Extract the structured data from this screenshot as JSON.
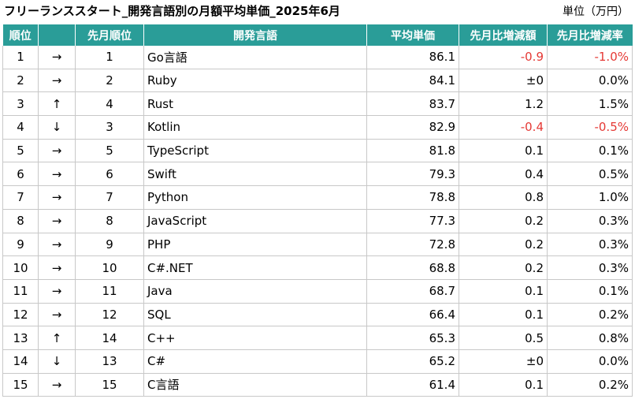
{
  "title": "フリーランススタート_開発言語別の月額平均単価_2025年6月",
  "unit": "単位（万円）",
  "colors": {
    "header_bg": "#2a9d98",
    "header_text": "#ffffff",
    "negative": "#e53935"
  },
  "table": {
    "headers": [
      "順位",
      "",
      "先月順位",
      "開発言語",
      "平均単価",
      "先月比増減額",
      "先月比増減率"
    ],
    "rows": [
      [
        "1",
        "→",
        "1",
        "Go言語",
        "86.1",
        "-0.9",
        "-1.0%"
      ],
      [
        "2",
        "→",
        "2",
        "Ruby",
        "84.1",
        "±0",
        "0.0%"
      ],
      [
        "3",
        "↑",
        "4",
        "Rust",
        "83.7",
        "1.2",
        "1.5%"
      ],
      [
        "4",
        "↓",
        "3",
        "Kotlin",
        "82.9",
        "-0.4",
        "-0.5%"
      ],
      [
        "5",
        "→",
        "5",
        "TypeScript",
        "81.8",
        "0.1",
        "0.1%"
      ],
      [
        "6",
        "→",
        "6",
        "Swift",
        "79.3",
        "0.4",
        "0.5%"
      ],
      [
        "7",
        "→",
        "7",
        "Python",
        "78.8",
        "0.8",
        "1.0%"
      ],
      [
        "8",
        "→",
        "8",
        "JavaScript",
        "77.3",
        "0.2",
        "0.3%"
      ],
      [
        "9",
        "→",
        "9",
        "PHP",
        "72.8",
        "0.2",
        "0.3%"
      ],
      [
        "10",
        "→",
        "10",
        "C#.NET",
        "68.8",
        "0.2",
        "0.3%"
      ],
      [
        "11",
        "→",
        "11",
        "Java",
        "68.7",
        "0.1",
        "0.1%"
      ],
      [
        "12",
        "→",
        "12",
        "SQL",
        "66.4",
        "0.1",
        "0.2%"
      ],
      [
        "13",
        "↑",
        "14",
        "C++",
        "65.3",
        "0.5",
        "0.8%"
      ],
      [
        "14",
        "↓",
        "13",
        "C#",
        "65.2",
        "±0",
        "0.0%"
      ],
      [
        "15",
        "→",
        "15",
        "C言語",
        "61.4",
        "0.1",
        "0.2%"
      ]
    ]
  },
  "chart_data": {
    "type": "table",
    "title": "フリーランススタート_開発言語別の月額平均単価_2025年6月",
    "unit": "単位（万円）",
    "columns": [
      "順位",
      "",
      "先月順位",
      "開発言語",
      "平均単価",
      "先月比増減額",
      "先月比増減率"
    ],
    "rows": [
      {
        "rank": 1,
        "trend": "→",
        "prev_rank": 1,
        "language": "Go言語",
        "avg_price": 86.1,
        "change": -0.9,
        "change_pct": -1.0
      },
      {
        "rank": 2,
        "trend": "→",
        "prev_rank": 2,
        "language": "Ruby",
        "avg_price": 84.1,
        "change": 0,
        "change_pct": 0.0
      },
      {
        "rank": 3,
        "trend": "↑",
        "prev_rank": 4,
        "language": "Rust",
        "avg_price": 83.7,
        "change": 1.2,
        "change_pct": 1.5
      },
      {
        "rank": 4,
        "trend": "↓",
        "prev_rank": 3,
        "language": "Kotlin",
        "avg_price": 82.9,
        "change": -0.4,
        "change_pct": -0.5
      },
      {
        "rank": 5,
        "trend": "→",
        "prev_rank": 5,
        "language": "TypeScript",
        "avg_price": 81.8,
        "change": 0.1,
        "change_pct": 0.1
      },
      {
        "rank": 6,
        "trend": "→",
        "prev_rank": 6,
        "language": "Swift",
        "avg_price": 79.3,
        "change": 0.4,
        "change_pct": 0.5
      },
      {
        "rank": 7,
        "trend": "→",
        "prev_rank": 7,
        "language": "Python",
        "avg_price": 78.8,
        "change": 0.8,
        "change_pct": 1.0
      },
      {
        "rank": 8,
        "trend": "→",
        "prev_rank": 8,
        "language": "JavaScript",
        "avg_price": 77.3,
        "change": 0.2,
        "change_pct": 0.3
      },
      {
        "rank": 9,
        "trend": "→",
        "prev_rank": 9,
        "language": "PHP",
        "avg_price": 72.8,
        "change": 0.2,
        "change_pct": 0.3
      },
      {
        "rank": 10,
        "trend": "→",
        "prev_rank": 10,
        "language": "C#.NET",
        "avg_price": 68.8,
        "change": 0.2,
        "change_pct": 0.3
      },
      {
        "rank": 11,
        "trend": "→",
        "prev_rank": 11,
        "language": "Java",
        "avg_price": 68.7,
        "change": 0.1,
        "change_pct": 0.1
      },
      {
        "rank": 12,
        "trend": "→",
        "prev_rank": 12,
        "language": "SQL",
        "avg_price": 66.4,
        "change": 0.1,
        "change_pct": 0.2
      },
      {
        "rank": 13,
        "trend": "↑",
        "prev_rank": 14,
        "language": "C++",
        "avg_price": 65.3,
        "change": 0.5,
        "change_pct": 0.8
      },
      {
        "rank": 14,
        "trend": "↓",
        "prev_rank": 13,
        "language": "C#",
        "avg_price": 65.2,
        "change": 0,
        "change_pct": 0.0
      },
      {
        "rank": 15,
        "trend": "→",
        "prev_rank": 15,
        "language": "C言語",
        "avg_price": 61.4,
        "change": 0.1,
        "change_pct": 0.2
      }
    ]
  }
}
